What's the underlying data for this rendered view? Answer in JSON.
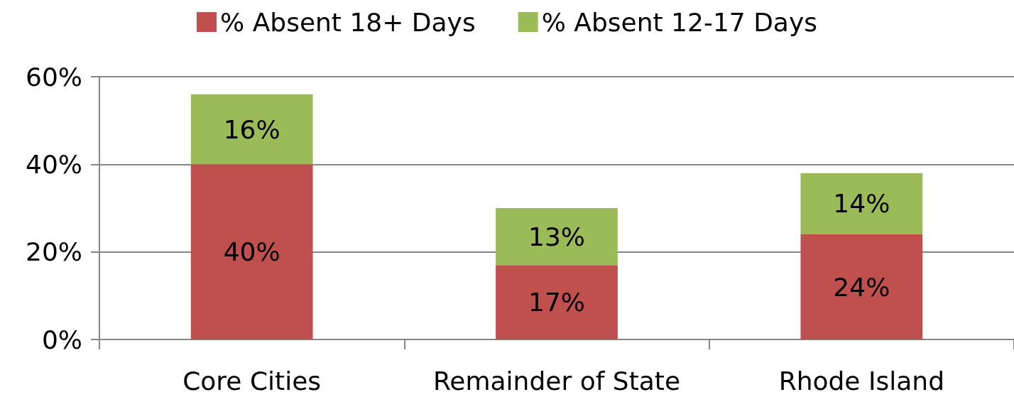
{
  "chart_data": {
    "type": "bar",
    "stacked": true,
    "categories": [
      "Core Cities",
      "Remainder of State",
      "Rhode Island"
    ],
    "series": [
      {
        "name": "% Absent 18+ Days",
        "color": "#c0504d",
        "values": [
          40,
          17,
          24
        ],
        "value_labels": [
          "40%",
          "17%",
          "24%"
        ]
      },
      {
        "name": "% Absent 12-17 Days",
        "color": "#9bbb59",
        "values": [
          16,
          13,
          14
        ],
        "value_labels": [
          "16%",
          "13%",
          "14%"
        ]
      }
    ],
    "ylim": [
      0,
      60
    ],
    "yticks": [
      {
        "value": 0,
        "label": "0%"
      },
      {
        "value": 20,
        "label": "20%"
      },
      {
        "value": 40,
        "label": "40%"
      },
      {
        "value": 60,
        "label": "60%"
      }
    ],
    "grid": "y",
    "legend": "top"
  }
}
